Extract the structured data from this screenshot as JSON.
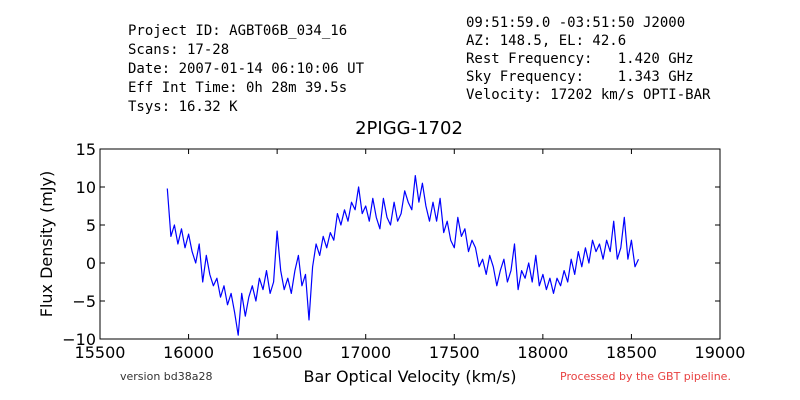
{
  "header": {
    "left_lines": [
      "Project ID: AGBT06B_034_16",
      "Scans: 17-28",
      "Date: 2007-01-14 06:10:06 UT",
      "Eff Int Time: 0h 28m 39.5s",
      "Tsys: 16.32 K"
    ],
    "right_lines": [
      "09:51:59.0 -03:51:50 J2000",
      "AZ: 148.5, EL: 42.6",
      "Rest Frequency:   1.420 GHz",
      "Sky Frequency:    1.343 GHz",
      "Velocity: 17202 km/s OPTI-BAR"
    ]
  },
  "footer": {
    "version": "version bd38a28",
    "pipeline": "Processed by the GBT pipeline.",
    "pipeline_color": "#e84040"
  },
  "chart_data": {
    "type": "line",
    "title": "2PIGG-1702",
    "xlabel": "Bar Optical Velocity (km/s)",
    "ylabel": "Flux Density (mJy)",
    "xlim": [
      15500,
      19000
    ],
    "ylim": [
      -10,
      15
    ],
    "xticks": [
      "15500",
      "16000",
      "16500",
      "17000",
      "17500",
      "18000",
      "18500",
      "19000"
    ],
    "yticks": [
      "−10",
      "−5",
      "0",
      "5",
      "10",
      "15"
    ],
    "grid": false,
    "series": [
      {
        "color": "#0000ff",
        "x": [
          15880,
          15900,
          15920,
          15940,
          15960,
          15980,
          16000,
          16020,
          16040,
          16060,
          16080,
          16100,
          16120,
          16140,
          16160,
          16180,
          16200,
          16220,
          16240,
          16260,
          16280,
          16300,
          16320,
          16340,
          16360,
          16380,
          16400,
          16420,
          16440,
          16460,
          16480,
          16500,
          16520,
          16540,
          16560,
          16580,
          16600,
          16620,
          16640,
          16660,
          16680,
          16700,
          16720,
          16740,
          16760,
          16780,
          16800,
          16820,
          16840,
          16860,
          16880,
          16900,
          16920,
          16940,
          16960,
          16980,
          17000,
          17020,
          17040,
          17060,
          17080,
          17100,
          17120,
          17140,
          17160,
          17180,
          17200,
          17220,
          17240,
          17260,
          17280,
          17300,
          17320,
          17340,
          17360,
          17380,
          17400,
          17420,
          17440,
          17460,
          17480,
          17500,
          17520,
          17540,
          17560,
          17580,
          17600,
          17620,
          17640,
          17660,
          17680,
          17700,
          17720,
          17740,
          17760,
          17780,
          17800,
          17820,
          17840,
          17860,
          17880,
          17900,
          17920,
          17940,
          17960,
          17980,
          18000,
          18020,
          18040,
          18060,
          18080,
          18100,
          18120,
          18140,
          18160,
          18180,
          18200,
          18220,
          18240,
          18260,
          18280,
          18300,
          18320,
          18340,
          18360,
          18380,
          18400,
          18420,
          18440,
          18460,
          18480,
          18500,
          18520,
          18540
        ],
        "y": [
          9.8,
          3.5,
          5.0,
          2.5,
          4.5,
          2.0,
          3.8,
          1.5,
          0.0,
          2.5,
          -2.5,
          1.0,
          -1.5,
          -3.0,
          -2.0,
          -4.5,
          -3.0,
          -5.5,
          -4.0,
          -6.5,
          -9.5,
          -4.0,
          -7.0,
          -4.5,
          -3.0,
          -5.0,
          -2.0,
          -3.5,
          -1.0,
          -4.0,
          -2.5,
          4.2,
          -1.0,
          -3.5,
          -2.0,
          -4.0,
          -1.0,
          1.0,
          -3.0,
          -1.5,
          -7.5,
          -0.5,
          2.5,
          1.0,
          3.5,
          2.0,
          4.0,
          3.0,
          6.5,
          5.0,
          7.0,
          5.5,
          8.0,
          7.0,
          10.0,
          6.5,
          7.5,
          5.5,
          8.5,
          6.0,
          4.5,
          8.5,
          6.0,
          5.0,
          8.0,
          5.5,
          6.5,
          9.5,
          8.0,
          7.0,
          11.5,
          8.0,
          10.5,
          7.5,
          5.5,
          8.0,
          5.5,
          8.5,
          4.0,
          5.5,
          3.0,
          2.0,
          6.0,
          3.5,
          4.5,
          1.5,
          3.0,
          2.0,
          -0.5,
          0.5,
          -1.5,
          1.0,
          -0.5,
          -3.0,
          -1.0,
          0.5,
          -2.5,
          -1.0,
          2.5,
          -3.5,
          -1.0,
          -2.0,
          0.0,
          -2.5,
          1.0,
          -3.0,
          -1.5,
          -3.5,
          -2.0,
          -4.0,
          -2.0,
          -3.0,
          -1.0,
          -2.5,
          0.5,
          -1.5,
          1.5,
          -0.5,
          2.0,
          0.0,
          3.0,
          1.5,
          2.5,
          0.5,
          3.0,
          1.5,
          5.5,
          0.5,
          2.0,
          6.0,
          0.5,
          3.0,
          -0.5,
          0.5
        ]
      }
    ]
  }
}
